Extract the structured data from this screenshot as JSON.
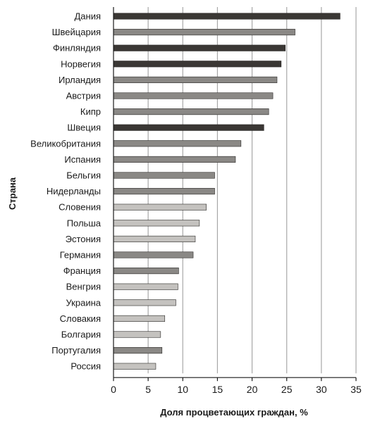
{
  "chart_data": {
    "type": "bar",
    "orientation": "horizontal",
    "xlabel": "Доля процветающих граждан, %",
    "ylabel": "Страна",
    "xlim": [
      0,
      35
    ],
    "xticks": [
      0,
      5,
      10,
      15,
      20,
      25,
      30,
      35
    ],
    "grid": "vertical",
    "categories": [
      "Дания",
      "Швейцария",
      "Финляндия",
      "Норвегия",
      "Ирландия",
      "Австрия",
      "Кипр",
      "Швеция",
      "Великобритания",
      "Испания",
      "Бельгия",
      "Нидерланды",
      "Словения",
      "Польша",
      "Эстония",
      "Германия",
      "Франция",
      "Венгрия",
      "Украина",
      "Словакия",
      "Болгария",
      "Португалия",
      "Россия"
    ],
    "values": [
      32.7,
      26.2,
      24.8,
      24.2,
      23.6,
      23.0,
      22.4,
      21.7,
      18.4,
      17.6,
      14.6,
      14.6,
      13.4,
      12.4,
      11.8,
      11.5,
      9.4,
      9.3,
      9.0,
      7.4,
      6.8,
      7.0,
      6.1
    ],
    "bar_colors": [
      "#3a3734",
      "#8a8885",
      "#3a3734",
      "#3a3734",
      "#8a8885",
      "#8a8885",
      "#8a8885",
      "#3a3734",
      "#8a8885",
      "#8a8885",
      "#8a8885",
      "#8a8885",
      "#c4c2bf",
      "#c4c2bf",
      "#c4c2bf",
      "#8a8885",
      "#8a8885",
      "#c4c2bf",
      "#c4c2bf",
      "#c4c2bf",
      "#c4c2bf",
      "#8a8885",
      "#c4c2bf"
    ]
  }
}
